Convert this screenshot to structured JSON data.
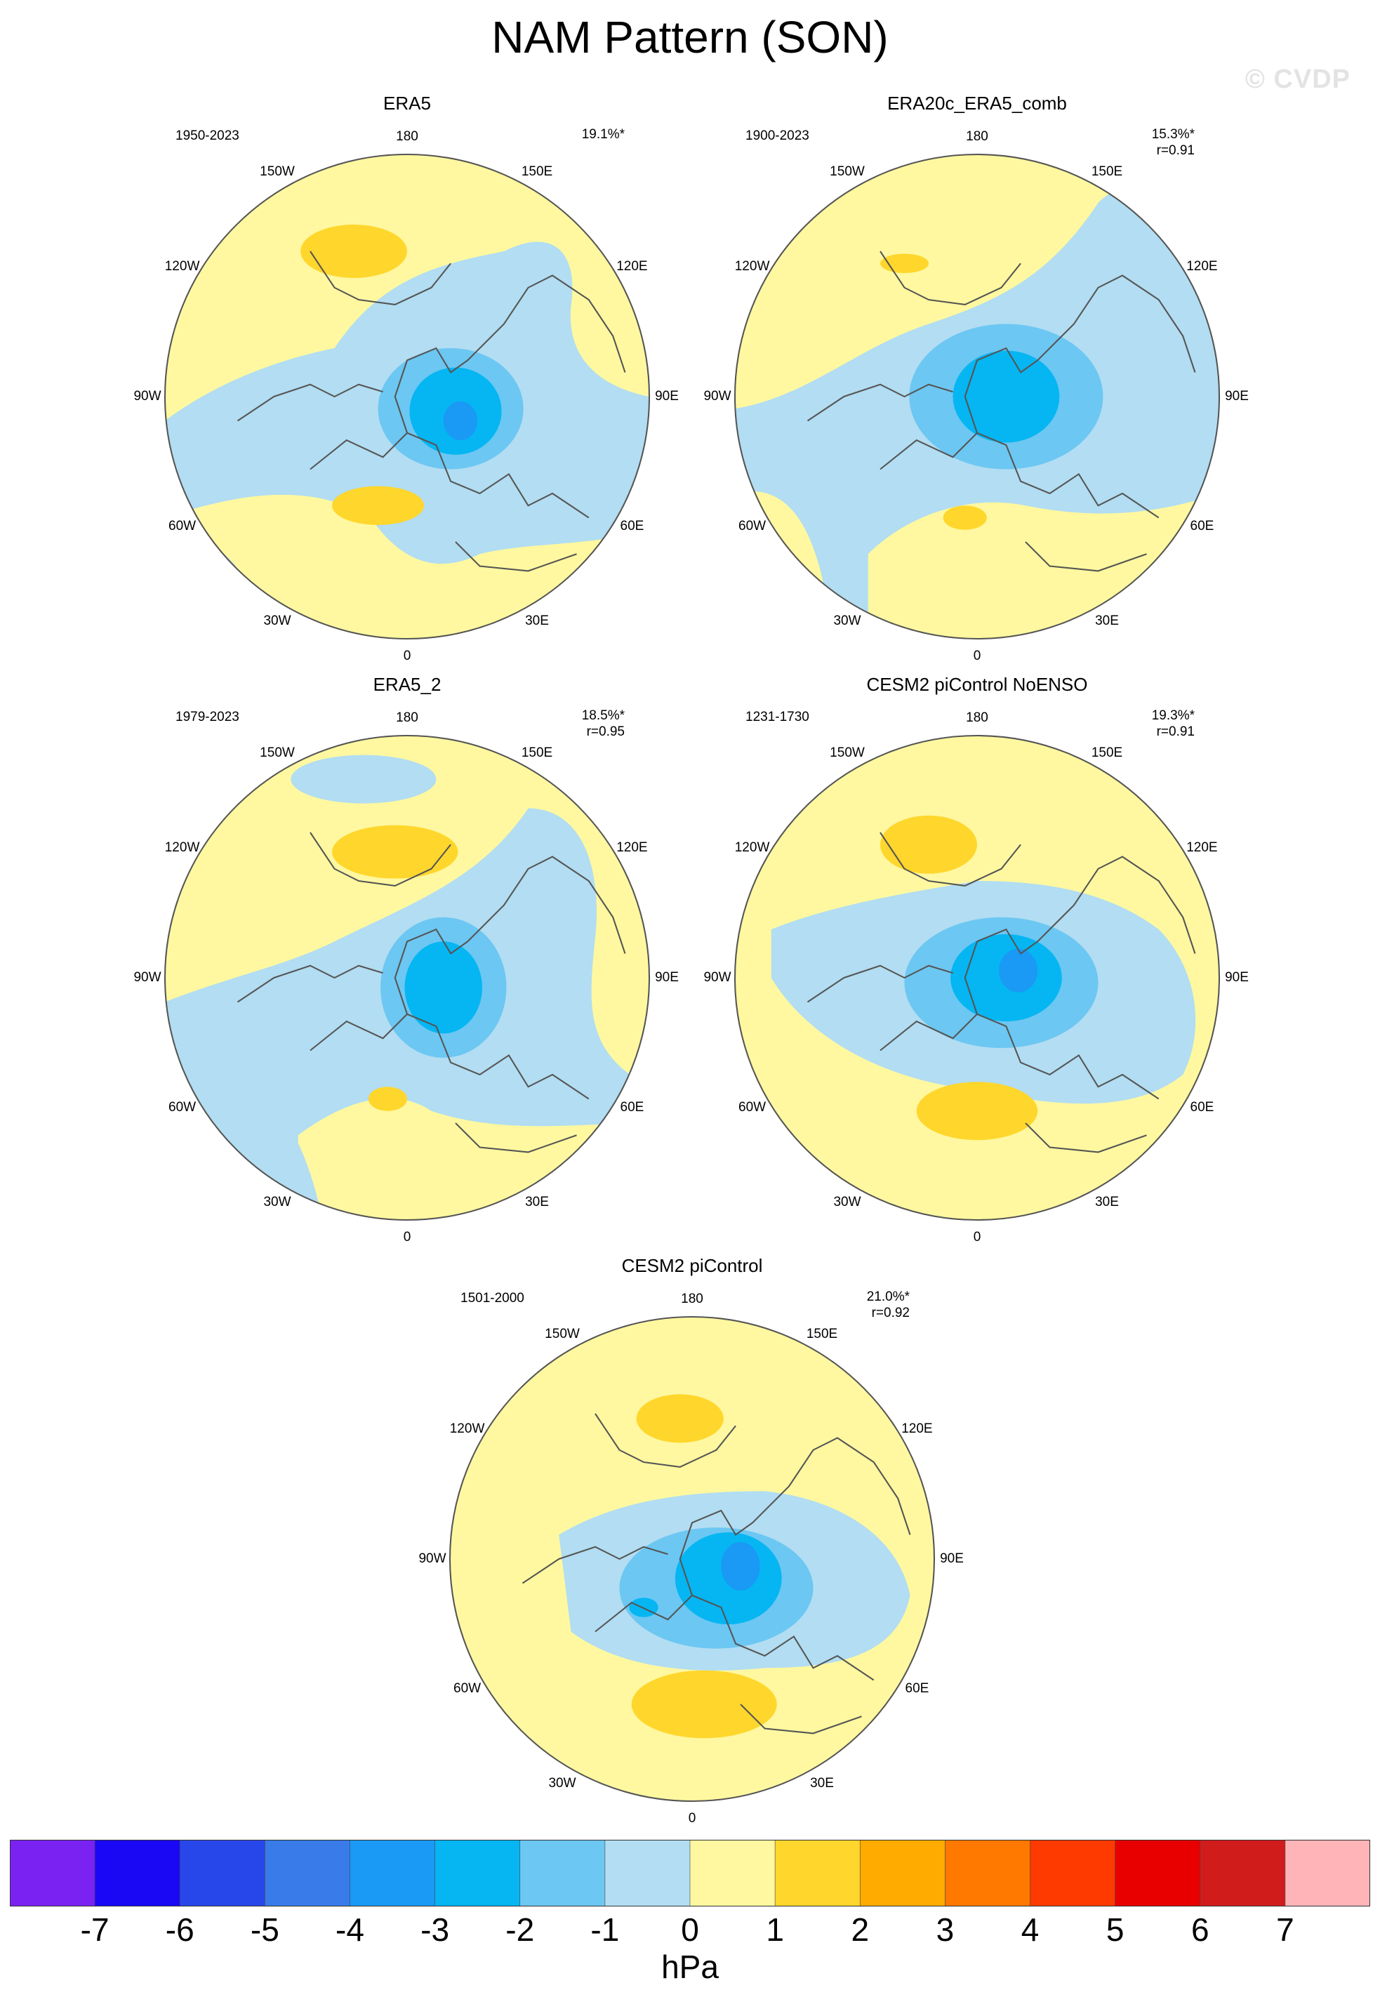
{
  "title": "NAM Pattern (SON)",
  "watermark": "© CVDP",
  "units": "hPa",
  "colorbar": {
    "colors": [
      "#7a22f2",
      "#1a08f5",
      "#2847ea",
      "#387be9",
      "#1a99f5",
      "#05b6f2",
      "#6cc7f2",
      "#b2ddf2",
      "#fff8a0",
      "#ffd62c",
      "#ffab00",
      "#ff7800",
      "#ff3a00",
      "#e80000",
      "#d11c1c",
      "#ffb5b8"
    ],
    "labels": [
      "-7",
      "-6",
      "-5",
      "-4",
      "-3",
      "-2",
      "-1",
      "0",
      "1",
      "2",
      "3",
      "4",
      "5",
      "6",
      "7"
    ]
  },
  "longitude_labels": [
    "180",
    "150E",
    "120E",
    "90E",
    "60E",
    "30E",
    "0",
    "30W",
    "60W",
    "90W",
    "120W",
    "150W"
  ],
  "panels": [
    {
      "title": "ERA5",
      "period": "1950-2023",
      "variance": "19.1%*",
      "corr": ""
    },
    {
      "title": "ERA20c_ERA5_comb",
      "period": "1900-2023",
      "variance": "15.3%*",
      "corr": "r=0.91"
    },
    {
      "title": "ERA5_2",
      "period": "1979-2023",
      "variance": "18.5%*",
      "corr": "r=0.95"
    },
    {
      "title": "CESM2 piControl NoENSO",
      "period": "1231-1730",
      "variance": "19.3%*",
      "corr": "r=0.91"
    },
    {
      "title": "CESM2 piControl",
      "period": "1501-2000",
      "variance": "21.0%*",
      "corr": "r=0.92"
    }
  ]
}
